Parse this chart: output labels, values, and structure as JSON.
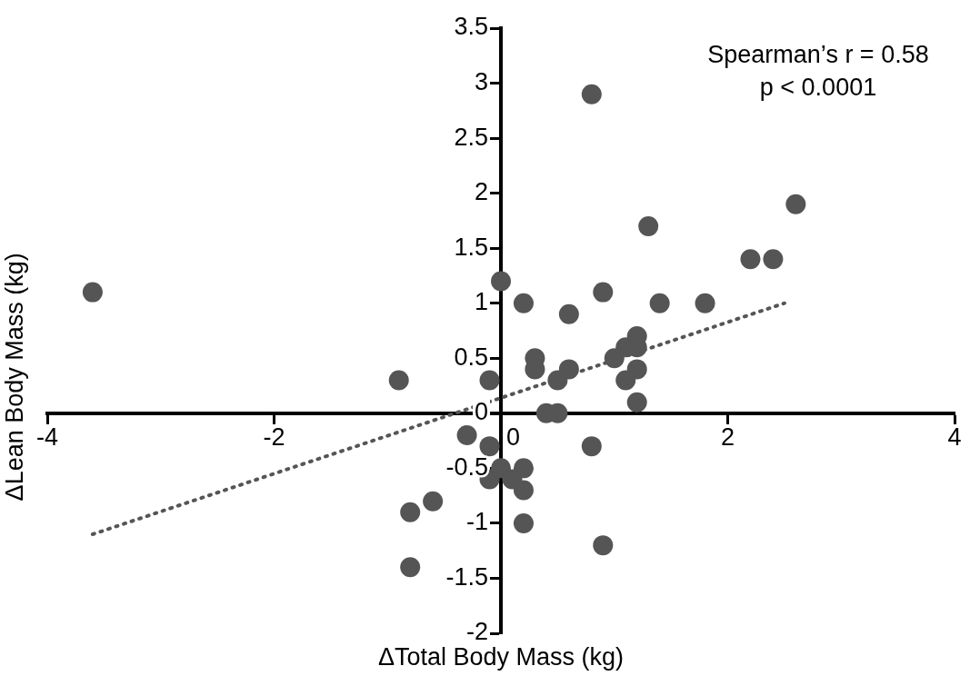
{
  "chart_data": {
    "type": "scatter",
    "xlabel": "ΔTotal Body Mass (kg)",
    "ylabel": "ΔLean Body Mass (kg)",
    "annotations": [
      "Spearman’s r = 0.58",
      "p < 0.0001"
    ],
    "xlim": [
      -4,
      4
    ],
    "xticks": [
      -4,
      -2,
      0,
      2,
      4
    ],
    "ylim": [
      -2,
      3.5
    ],
    "yticks": [
      -2,
      -1.5,
      -1,
      -0.5,
      0,
      0.5,
      1,
      1.5,
      2,
      2.5,
      3,
      3.5
    ],
    "grid": false,
    "marker": "circle",
    "series": [
      {
        "type": "scatter",
        "color": "#555555",
        "x": [
          -3.6,
          -0.9,
          -0.1,
          0,
          0.2,
          0.9,
          0.6,
          1.4,
          1.8,
          0.3,
          0.3,
          0.6,
          0.5,
          1.0,
          1.1,
          1.2,
          1.2,
          1.2,
          1.1,
          1.2,
          0.4,
          0.5,
          -0.3,
          -0.1,
          0.8,
          -0.1,
          0,
          0.1,
          0.2,
          0.2,
          0.2,
          -0.6,
          -0.8,
          0.9,
          -0.8,
          0.8,
          2.6,
          1.3,
          2.2,
          2.4
        ],
        "values": [
          1.1,
          0.3,
          0.3,
          1.2,
          1.0,
          1.1,
          0.9,
          1.0,
          1.0,
          0.5,
          0.4,
          0.4,
          0.3,
          0.5,
          0.6,
          0.7,
          0.6,
          0.4,
          0.3,
          0.1,
          0,
          0,
          -0.2,
          -0.3,
          -0.3,
          -0.6,
          -0.5,
          -0.6,
          -0.5,
          -0.7,
          -1.0,
          -0.8,
          -0.9,
          -1.2,
          -1.4,
          2.9,
          1.9,
          1.7,
          1.4,
          1.4
        ]
      },
      {
        "type": "line",
        "color": "#555555",
        "line_style": "dotted",
        "marker": "none",
        "x": [
          -3.6,
          2.5
        ],
        "values": [
          -1.1,
          1.0
        ]
      }
    ]
  }
}
